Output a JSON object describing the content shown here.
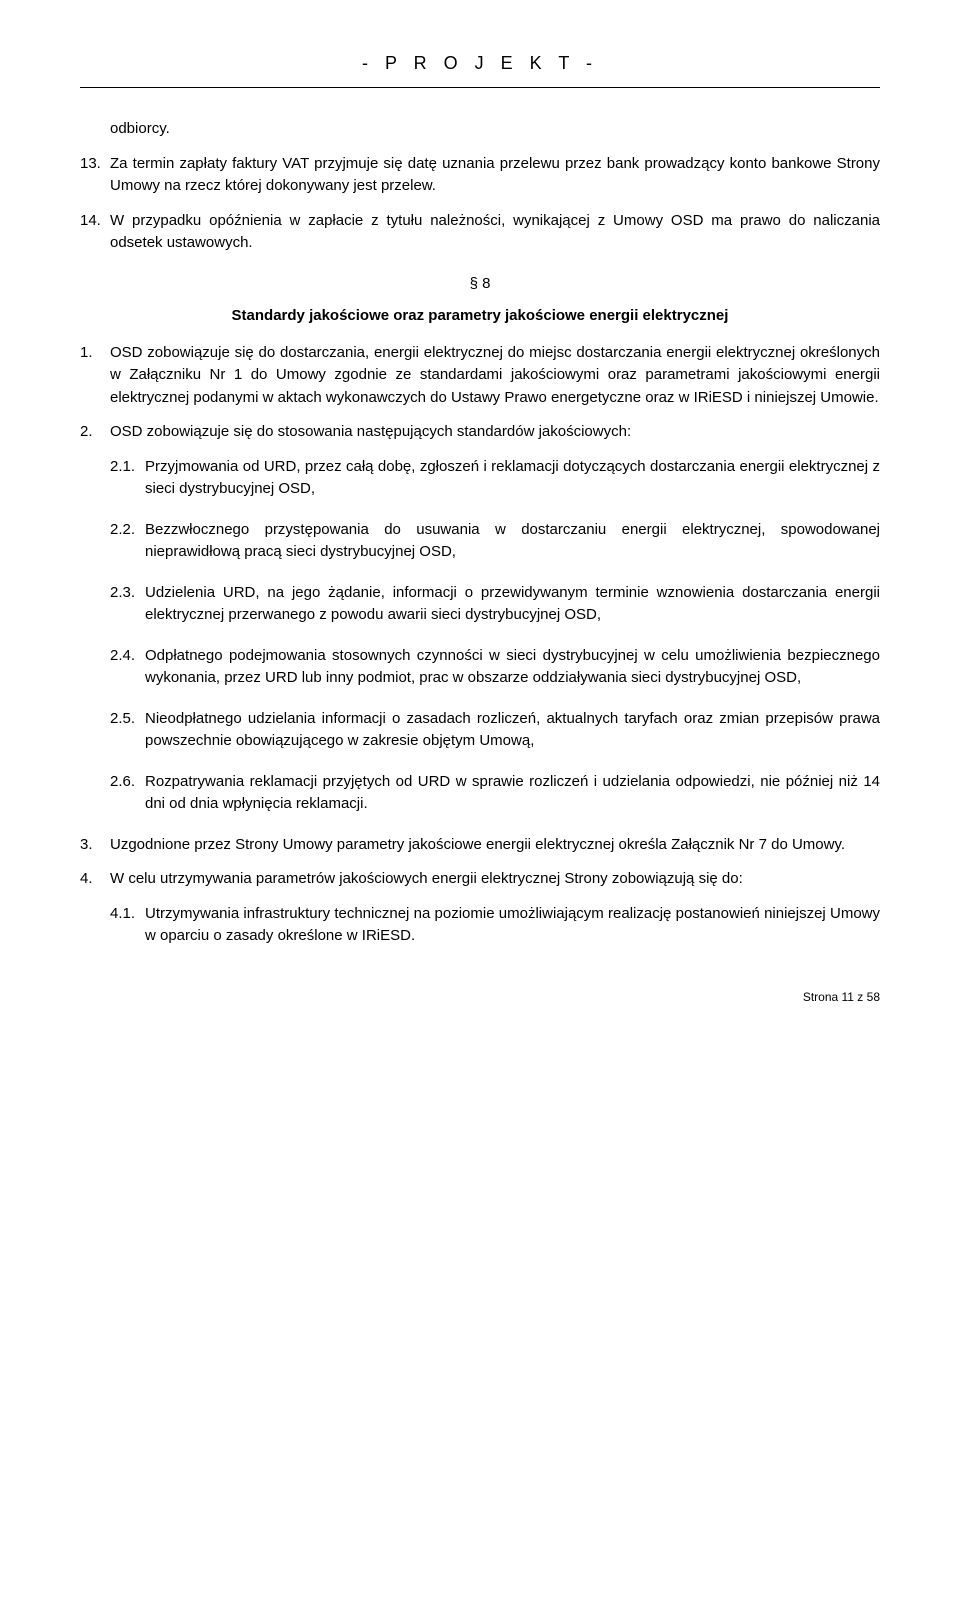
{
  "header": {
    "title": "- P R O J E K T -"
  },
  "paragraphs": {
    "p_odbiorca": "odbiorcy.",
    "item13_num": "13.",
    "item13_text": "Za termin zapłaty faktury VAT przyjmuje się datę uznania przelewu przez bank prowadzący konto bankowe Strony Umowy na rzecz której dokonywany jest przelew.",
    "item14_num": "14.",
    "item14_text": "W przypadku opóźnienia w zapłacie z tytułu należności, wynikającej z Umowy OSD ma prawo do naliczania odsetek ustawowych."
  },
  "section8": {
    "marker": "§ 8",
    "title": "Standardy jakościowe oraz parametry jakościowe energii elektrycznej",
    "item1_num": "1.",
    "item1_text": "OSD zobowiązuje się do dostarczania, energii elektrycznej do miejsc dostarczania energii elektrycznej określonych w Załączniku Nr 1 do Umowy zgodnie ze standardami jakościowymi oraz parametrami jakościowymi energii elektrycznej podanymi w aktach wykonawczych do Ustawy Prawo energetyczne oraz w IRiESD i niniejszej Umowie.",
    "item2_num": "2.",
    "item2_text": "OSD zobowiązuje się do stosowania następujących standardów jakościowych:",
    "sub21_num": "2.1.",
    "sub21_text": "Przyjmowania od URD, przez całą dobę, zgłoszeń i reklamacji dotyczących dostarczania energii elektrycznej z sieci dystrybucyjnej OSD,",
    "sub22_num": "2.2.",
    "sub22_text": "Bezzwłocznego przystępowania do usuwania w dostarczaniu energii elektrycznej, spowodowanej nieprawidłową pracą sieci dystrybucyjnej OSD,",
    "sub23_num": "2.3.",
    "sub23_text": "Udzielenia URD, na jego żądanie, informacji o przewidywanym terminie wznowienia dostarczania energii elektrycznej przerwanego z powodu awarii sieci dystrybucyjnej OSD,",
    "sub24_num": "2.4.",
    "sub24_text": "Odpłatnego podejmowania stosownych czynności w sieci dystrybucyjnej w celu umożliwienia bezpiecznego wykonania, przez URD lub inny podmiot, prac w obszarze oddziaływania sieci dystrybucyjnej OSD,",
    "sub25_num": "2.5.",
    "sub25_text": "Nieodpłatnego udzielania informacji o zasadach rozliczeń, aktualnych taryfach oraz zmian przepisów prawa powszechnie obowiązującego w zakresie objętym Umową,",
    "sub26_num": "2.6.",
    "sub26_text": "Rozpatrywania reklamacji przyjętych od URD w sprawie  rozliczeń i udzielania odpowiedzi, nie później niż 14 dni od dnia wpłynięcia reklamacji.",
    "item3_num": "3.",
    "item3_text": "Uzgodnione przez Strony Umowy parametry jakościowe energii elektrycznej określa Załącznik Nr 7 do Umowy.",
    "item4_num": "4.",
    "item4_text": "W celu utrzymywania parametrów jakościowych energii elektrycznej Strony zobowiązują się do:",
    "sub41_num": "4.1.",
    "sub41_text": "Utrzymywania infrastruktury technicznej na poziomie umożliwiającym realizację postanowień niniejszej Umowy w oparciu o zasady określone w IRiESD."
  },
  "footer": {
    "page": "Strona 11 z 58"
  }
}
